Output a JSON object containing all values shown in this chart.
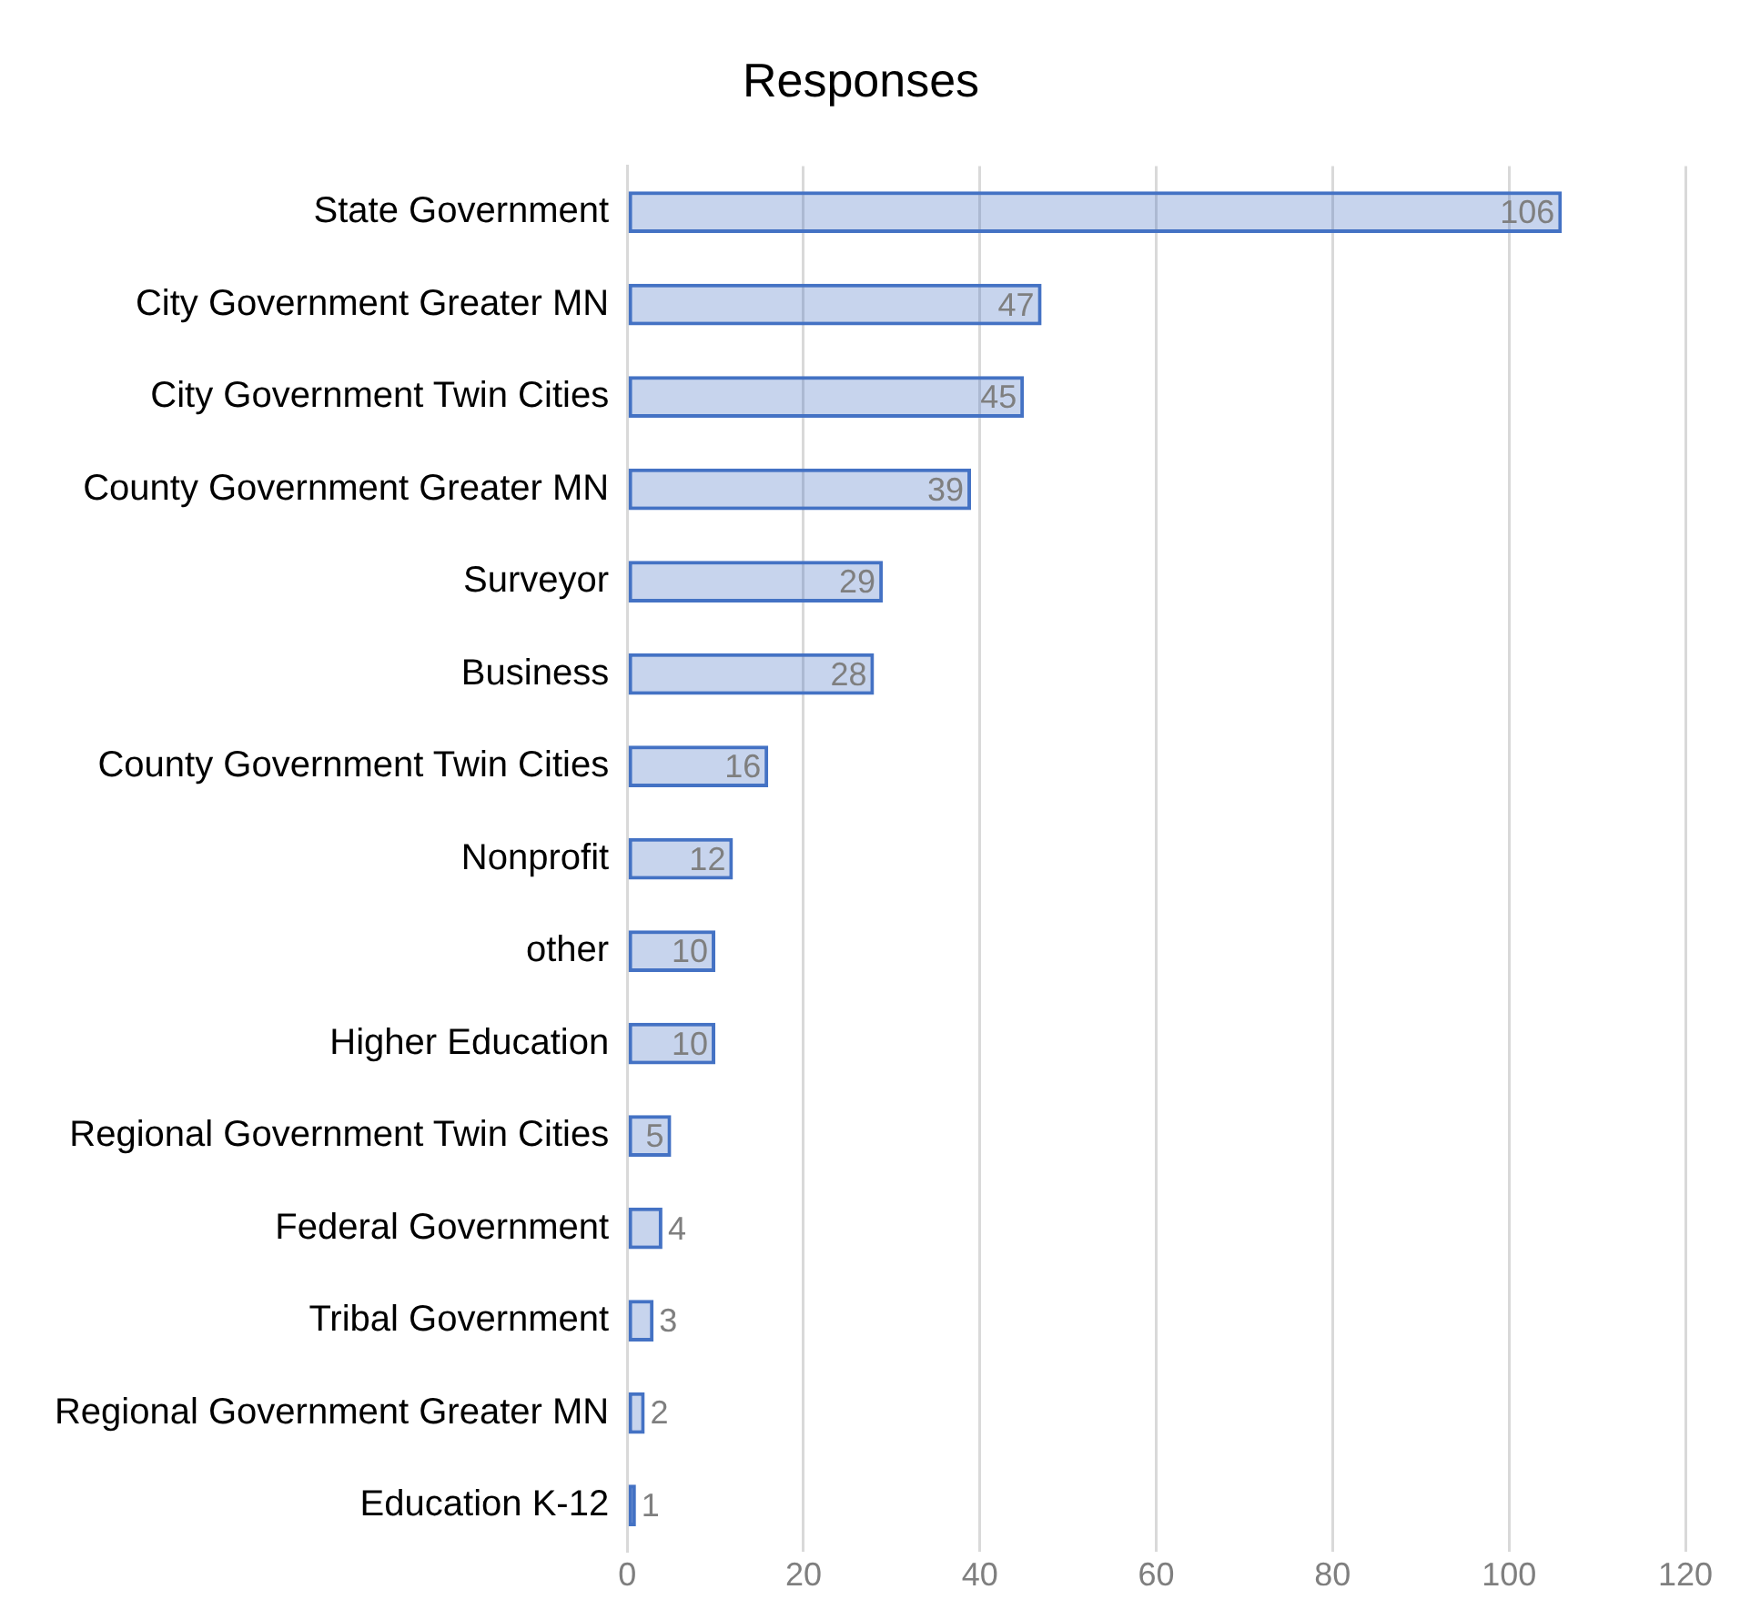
{
  "chart_data": {
    "type": "bar",
    "title": "Responses",
    "orientation": "horizontal",
    "categories": [
      "State Government",
      "City Government Greater MN",
      "City Government Twin Cities",
      "County Government Greater MN",
      "Surveyor",
      "Business",
      "County Government Twin Cities",
      "Nonprofit",
      "other",
      "Higher Education",
      "Regional Government Twin Cities",
      "Federal Government",
      "Tribal Government",
      "Regional Government Greater MN",
      "Education K-12"
    ],
    "values": [
      106,
      47,
      45,
      39,
      29,
      28,
      16,
      12,
      10,
      10,
      5,
      4,
      3,
      2,
      1
    ],
    "color": "#4472c4",
    "xlim": [
      0,
      120
    ],
    "xticks": [
      0,
      20,
      40,
      60,
      80,
      100,
      120
    ],
    "grid": "x",
    "data_labels": true
  }
}
